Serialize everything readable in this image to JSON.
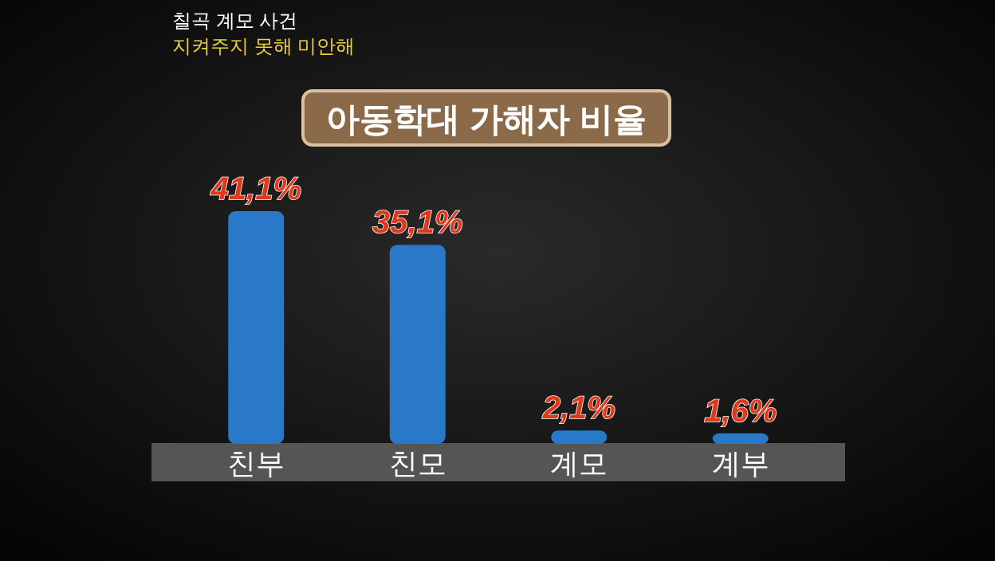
{
  "chart_data": {
    "type": "bar",
    "title": "아동학대 가해자 비율",
    "annotations": [
      "칠곡 계모 사건",
      "지켜주지 못해 미안해"
    ],
    "categories": [
      "친부",
      "친모",
      "계모",
      "계부"
    ],
    "values": [
      41.1,
      35.1,
      2.1,
      1.6
    ],
    "value_labels": [
      "41,1%",
      "35,1%",
      "2,1%",
      "1,6%"
    ],
    "color": "#2a78c8"
  }
}
